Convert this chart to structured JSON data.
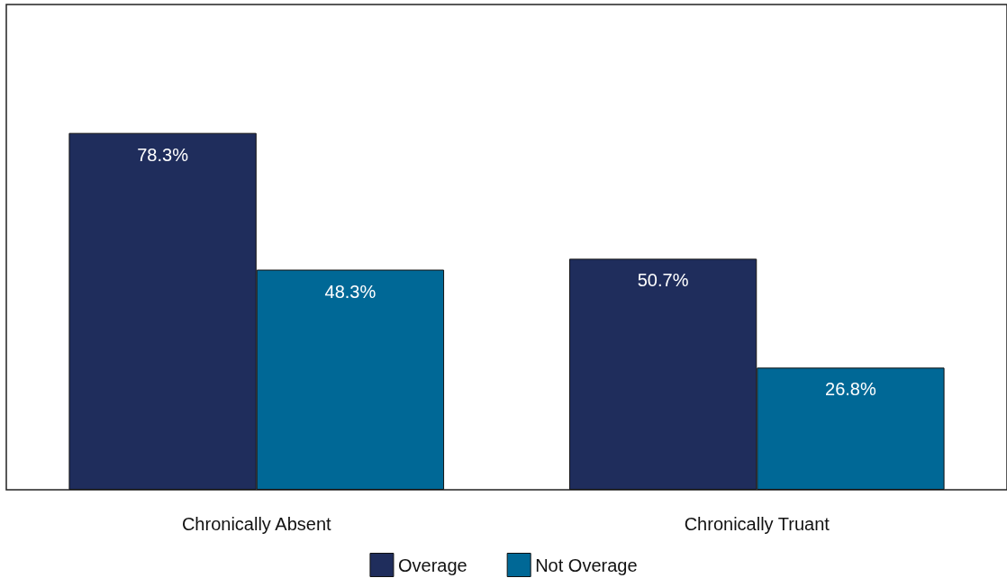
{
  "chart_data": {
    "type": "bar",
    "categories": [
      "Chronically Absent",
      "Chronically Truant"
    ],
    "series": [
      {
        "name": "Overage",
        "color": "#1f2d5c",
        "values": [
          78.3,
          50.7
        ],
        "value_labels": [
          "78.3%",
          "50.7%"
        ]
      },
      {
        "name": "Not Overage",
        "color": "#006896",
        "values": [
          48.3,
          26.8
        ],
        "value_labels": [
          "48.3%",
          "26.8%"
        ]
      }
    ],
    "legend": "bottom",
    "grid": false
  }
}
